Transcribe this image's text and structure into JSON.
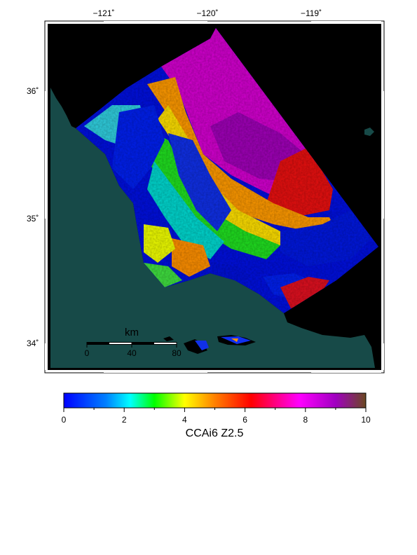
{
  "map": {
    "lon_ticks": [
      "−121˚",
      "−120˚",
      "−119˚"
    ],
    "lat_ticks": [
      "36˚",
      "35˚",
      "34˚"
    ]
  },
  "scale_bar": {
    "unit": "km",
    "labels": [
      "0",
      "40",
      "80"
    ]
  },
  "colorbar": {
    "title": "CCAi6 Z2.5",
    "tick_labels": [
      "0",
      "2",
      "4",
      "6",
      "8",
      "10"
    ],
    "range": [
      0,
      10
    ],
    "colors": [
      "#0000ff",
      "#00c8ff",
      "#00ff00",
      "#ffff00",
      "#ff8000",
      "#ff0000",
      "#ff00ff",
      "#a000c0",
      "#7a4020"
    ]
  },
  "colors": {
    "ocean": "#174a48",
    "background": "#000000",
    "no_data": "#000000"
  }
}
